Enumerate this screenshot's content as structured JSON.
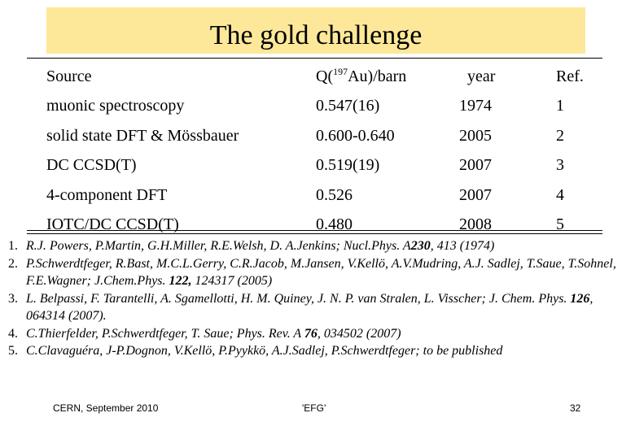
{
  "title": "The gold challenge",
  "table": {
    "headers": {
      "source": "Source",
      "q_prefix": "Q(",
      "q_sup": "197",
      "q_suffix": "Au)/barn",
      "year": "year",
      "ref": "Ref."
    },
    "rows": [
      {
        "source": "muonic spectroscopy",
        "q": "0.547(16)",
        "year": "1974",
        "ref": "1"
      },
      {
        "source": "solid state DFT & Mössbauer",
        "q": "0.600-0.640",
        "year": "2005",
        "ref": "2"
      },
      {
        "source": "DC CCSD(T)",
        "q": "0.519(19)",
        "year": "2007",
        "ref": "3"
      },
      {
        "source": "4-component DFT",
        "q": "0.526",
        "year": "2007",
        "ref": "4"
      },
      {
        "source": "IOTC/DC CCSD(T)",
        "q": "0.480",
        "year": "2008",
        "ref": "5"
      }
    ]
  },
  "references": [
    {
      "num": "1.",
      "a": "R.J. Powers, P.Martin, G.H.Miller, R.E.Welsh, D. A.Jenkins; Nucl.Phys. A",
      "vol": "230",
      "b": ", 413 (1974)"
    },
    {
      "num": "2.",
      "a": "P.Schwerdtfeger, R.Bast, M.C.L.Gerry, C.R.Jacob, M.Jansen, V.Kellö, A.V.Mudring, A.J. Sadlej, T.Saue, T.Sohnel, F.E.Wagner; J.Chem.Phys. ",
      "vol": "122,",
      "b": " 124317 (2005)"
    },
    {
      "num": "3.",
      "a": "L. Belpassi, F. Tarantelli, A. Sgamellotti, H. M. Quiney, J. N. P. van Stralen, L. Visscher; J. Chem. Phys. ",
      "vol": "126",
      "b": ", 064314 (2007)."
    },
    {
      "num": "4.",
      "a": "C.Thierfelder, P.Schwerdtfeger, T. Saue; Phys. Rev. A ",
      "vol": "76",
      "b": ", 034502 (2007)"
    },
    {
      "num": "5.",
      "a": "C.Clavaguéra, J-P.Dognon, V.Kellö, P.Pyykkö, A.J.Sadlej, P.Schwerdtfeger; to be published",
      "vol": "",
      "b": ""
    }
  ],
  "footer": {
    "left": "CERN, September 2010",
    "center": "'EFG'",
    "page": "32"
  }
}
